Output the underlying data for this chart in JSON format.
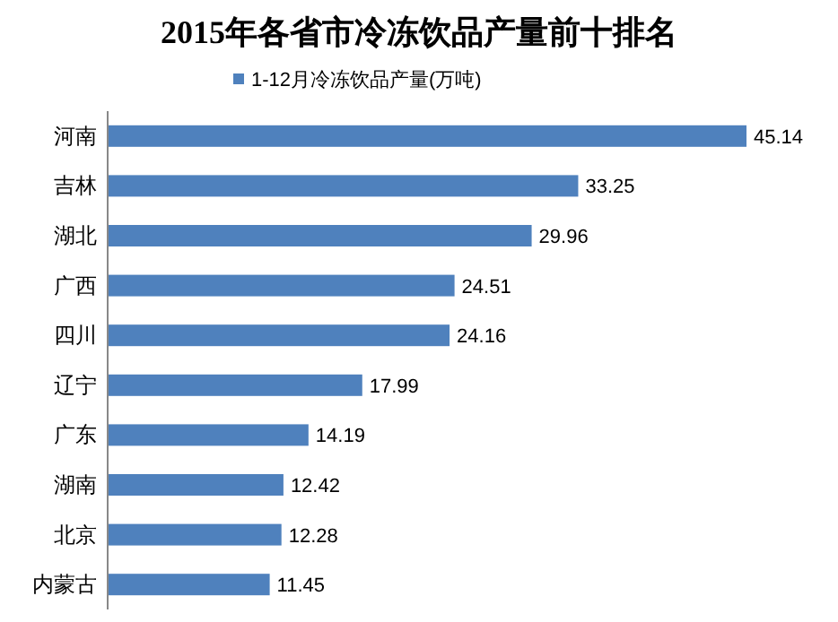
{
  "chart_data": {
    "type": "bar",
    "orientation": "horizontal",
    "title": "2015年各省市冷冻饮品产量前十排名",
    "categories": [
      "河南",
      "吉林",
      "湖北",
      "广西",
      "四川",
      "辽宁",
      "广东",
      "湖南",
      "北京",
      "内蒙古"
    ],
    "series": [
      {
        "name": "1-12月冷冻饮品产量(万吨)",
        "color": "#4f81bd",
        "values": [
          45.14,
          33.25,
          29.96,
          24.51,
          24.16,
          17.99,
          14.19,
          12.42,
          12.28,
          11.45
        ]
      }
    ],
    "data_labels": true,
    "legend": "top",
    "grid": false
  }
}
